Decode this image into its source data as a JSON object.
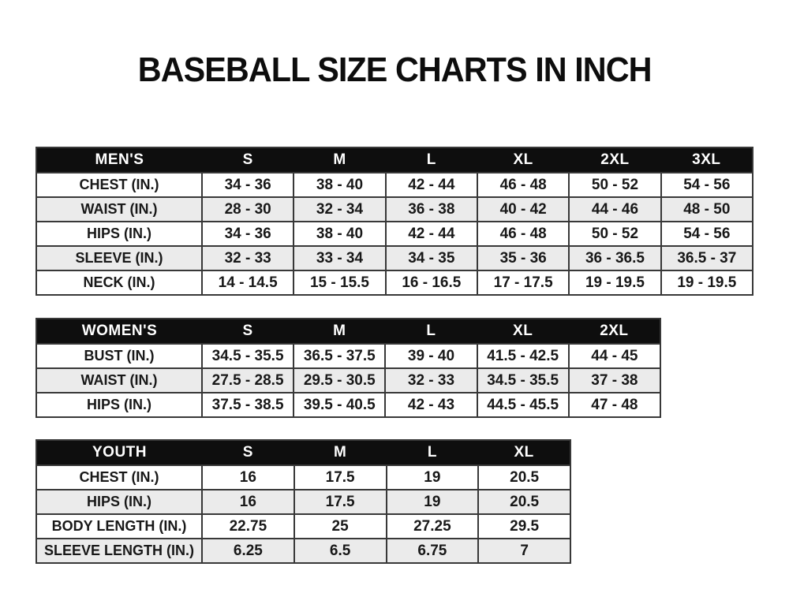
{
  "page": {
    "title": "BASEBALL SIZE CHARTS IN INCH"
  },
  "colors": {
    "header_bg": "#0e0e0e",
    "header_text": "#ffffff",
    "row_alt_bg": "#ebebeb",
    "border": "#383838",
    "text": "#181818"
  },
  "tables": {
    "mens": {
      "header": {
        "label": "MEN'S",
        "sizes": [
          "S",
          "M",
          "L",
          "XL",
          "2XL",
          "3XL"
        ]
      },
      "rows": [
        {
          "label": "CHEST (IN.)",
          "values": [
            "34 - 36",
            "38 - 40",
            "42 - 44",
            "46 - 48",
            "50 - 52",
            "54 - 56"
          ]
        },
        {
          "label": "WAIST (IN.)",
          "values": [
            "28 - 30",
            "32 - 34",
            "36 - 38",
            "40 - 42",
            "44 - 46",
            "48 - 50"
          ]
        },
        {
          "label": "HIPS (IN.)",
          "values": [
            "34 - 36",
            "38 - 40",
            "42 - 44",
            "46 - 48",
            "50 - 52",
            "54 - 56"
          ]
        },
        {
          "label": "SLEEVE (IN.)",
          "values": [
            "32 - 33",
            "33 - 34",
            "34 - 35",
            "35 - 36",
            "36 - 36.5",
            "36.5 - 37"
          ]
        },
        {
          "label": "NECK (IN.)",
          "values": [
            "14 - 14.5",
            "15 - 15.5",
            "16 - 16.5",
            "17 - 17.5",
            "19 - 19.5",
            "19 - 19.5"
          ]
        }
      ]
    },
    "womens": {
      "header": {
        "label": "WOMEN'S",
        "sizes": [
          "S",
          "M",
          "L",
          "XL",
          "2XL"
        ]
      },
      "rows": [
        {
          "label": "BUST (IN.)",
          "values": [
            "34.5 - 35.5",
            "36.5 - 37.5",
            "39 - 40",
            "41.5 - 42.5",
            "44 - 45"
          ]
        },
        {
          "label": "WAIST (IN.)",
          "values": [
            "27.5 - 28.5",
            "29.5 - 30.5",
            "32 - 33",
            "34.5 - 35.5",
            "37 - 38"
          ]
        },
        {
          "label": "HIPS (IN.)",
          "values": [
            "37.5 - 38.5",
            "39.5 - 40.5",
            "42 - 43",
            "44.5 - 45.5",
            "47 - 48"
          ]
        }
      ]
    },
    "youth": {
      "header": {
        "label": "YOUTH",
        "sizes": [
          "S",
          "M",
          "L",
          "XL"
        ]
      },
      "rows": [
        {
          "label": "CHEST (IN.)",
          "values": [
            "16",
            "17.5",
            "19",
            "20.5"
          ]
        },
        {
          "label": "HIPS (IN.)",
          "values": [
            "16",
            "17.5",
            "19",
            "20.5"
          ]
        },
        {
          "label": "BODY LENGTH (IN.)",
          "values": [
            "22.75",
            "25",
            "27.25",
            "29.5"
          ]
        },
        {
          "label": "SLEEVE LENGTH (IN.)",
          "values": [
            "6.25",
            "6.5",
            "6.75",
            "7"
          ]
        }
      ]
    }
  }
}
